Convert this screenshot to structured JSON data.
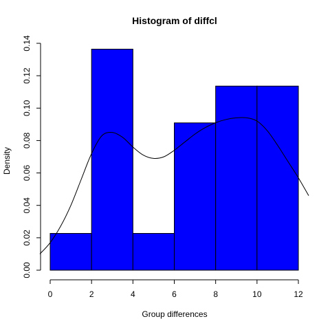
{
  "chart_data": {
    "type": "bar",
    "title": "Histogram of diffcl",
    "xlabel": "Group differences",
    "ylabel": "Density",
    "xlim": [
      0,
      12
    ],
    "ylim": [
      0,
      0.14
    ],
    "x_ticks": [
      "0",
      "2",
      "4",
      "6",
      "8",
      "10",
      "12"
    ],
    "y_ticks": [
      "0.00",
      "0.02",
      "0.04",
      "0.06",
      "0.08",
      "0.10",
      "0.12",
      "0.14"
    ],
    "bins": [
      {
        "start": 0,
        "end": 2,
        "density": 0.0227
      },
      {
        "start": 2,
        "end": 4,
        "density": 0.1364
      },
      {
        "start": 4,
        "end": 6,
        "density": 0.0227
      },
      {
        "start": 6,
        "end": 8,
        "density": 0.0909
      },
      {
        "start": 8,
        "end": 10,
        "density": 0.1136
      },
      {
        "start": 10,
        "end": 12,
        "density": 0.1136
      }
    ],
    "bar_color": "#0000ff",
    "density_curve": {
      "x": [
        -0.5,
        0,
        0.5,
        1,
        1.5,
        2,
        2.5,
        3,
        3.5,
        4,
        4.5,
        5,
        5.5,
        6,
        6.5,
        7,
        7.5,
        8,
        8.5,
        9,
        9.5,
        10,
        10.5,
        11,
        11.5,
        12,
        12.5
      ],
      "y": [
        0.01,
        0.017,
        0.027,
        0.04,
        0.056,
        0.072,
        0.083,
        0.085,
        0.082,
        0.076,
        0.071,
        0.069,
        0.07,
        0.074,
        0.079,
        0.084,
        0.088,
        0.091,
        0.093,
        0.094,
        0.094,
        0.092,
        0.086,
        0.077,
        0.067,
        0.057,
        0.046
      ]
    }
  }
}
